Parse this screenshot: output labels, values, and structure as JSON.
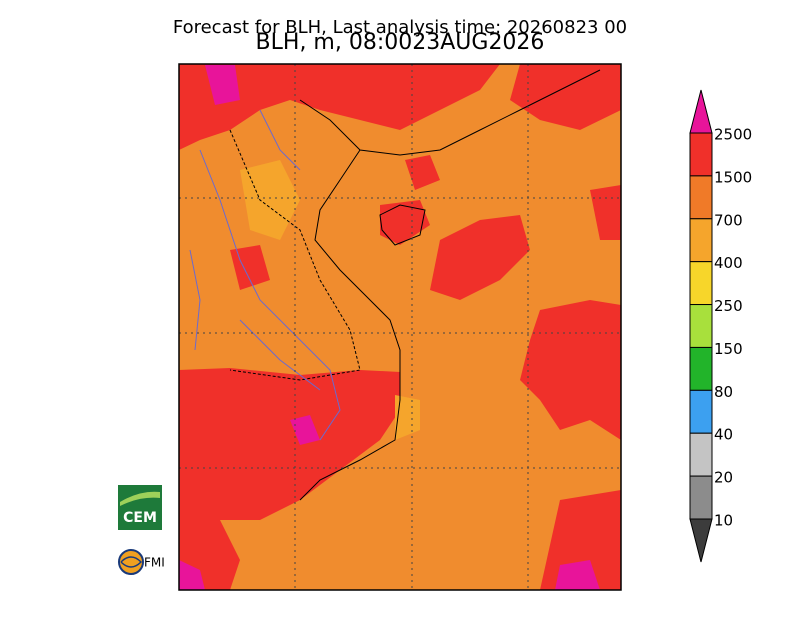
{
  "header": {
    "title": "Forecast for BLH, Last analysis time: 20260823 00",
    "subtitle": "BLH, m, 08:0023AUG2026"
  },
  "legend": {
    "labels": [
      "2500",
      "1500",
      "700",
      "400",
      "250",
      "150",
      "80",
      "40",
      "20",
      "10"
    ],
    "colors": [
      "#e8149a",
      "#f0302a",
      "#f07a28",
      "#f5a52c",
      "#f7d62a",
      "#a8e03c",
      "#22b42a",
      "#3ca0f0",
      "#c4c4c4",
      "#8c8c8c",
      "#3c3c3c"
    ]
  },
  "logos": {
    "cem": "CEM",
    "fmi": "FMI"
  }
}
